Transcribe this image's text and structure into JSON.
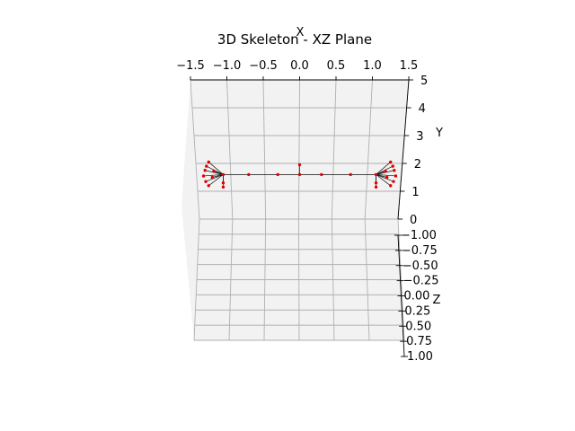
{
  "chart_data": {
    "type": "scatter",
    "title": "3D Skeleton - XZ Plane",
    "xlabel": "X",
    "ylabel": "Y",
    "zlabel": "Z",
    "xlim": [
      -1.5,
      1.5
    ],
    "ylim": [
      0,
      5
    ],
    "zlim": [
      -1.0,
      1.0
    ],
    "x_ticks": [
      "−1.5",
      "−1.0",
      "−0.5",
      "0.0",
      "0.5",
      "1.0",
      "1.5"
    ],
    "y_ticks": [
      "0",
      "1",
      "2",
      "3",
      "4",
      "5"
    ],
    "z_ticks": [
      "−1.00",
      "−0.75",
      "−0.50",
      "−0.25",
      "0.00",
      "0.25",
      "0.50",
      "0.75",
      "1.00"
    ],
    "grid": true,
    "series": [
      {
        "color": "#e00000",
        "joints": [
          {
            "x": 0.0,
            "y": 1.95
          },
          {
            "x": 0.0,
            "y": 1.6
          },
          {
            "x": -0.3,
            "y": 1.6
          },
          {
            "x": -0.7,
            "y": 1.6
          },
          {
            "x": -1.05,
            "y": 1.6
          },
          {
            "x": 0.3,
            "y": 1.6
          },
          {
            "x": 0.7,
            "y": 1.6
          },
          {
            "x": 1.05,
            "y": 1.6
          },
          {
            "x": -1.25,
            "y": 2.05
          },
          {
            "x": -1.28,
            "y": 1.9
          },
          {
            "x": -1.3,
            "y": 1.75
          },
          {
            "x": -1.32,
            "y": 1.55
          },
          {
            "x": -1.29,
            "y": 1.35
          },
          {
            "x": -1.25,
            "y": 1.2
          },
          {
            "x": -1.05,
            "y": 1.3
          },
          {
            "x": -1.05,
            "y": 1.15
          },
          {
            "x": -1.2,
            "y": 1.5
          },
          {
            "x": -1.18,
            "y": 1.72
          },
          {
            "x": 1.25,
            "y": 2.05
          },
          {
            "x": 1.28,
            "y": 1.9
          },
          {
            "x": 1.3,
            "y": 1.75
          },
          {
            "x": 1.32,
            "y": 1.55
          },
          {
            "x": 1.29,
            "y": 1.35
          },
          {
            "x": 1.25,
            "y": 1.2
          },
          {
            "x": 1.05,
            "y": 1.3
          },
          {
            "x": 1.05,
            "y": 1.15
          },
          {
            "x": 1.2,
            "y": 1.5
          },
          {
            "x": 1.18,
            "y": 1.72
          }
        ]
      }
    ]
  }
}
